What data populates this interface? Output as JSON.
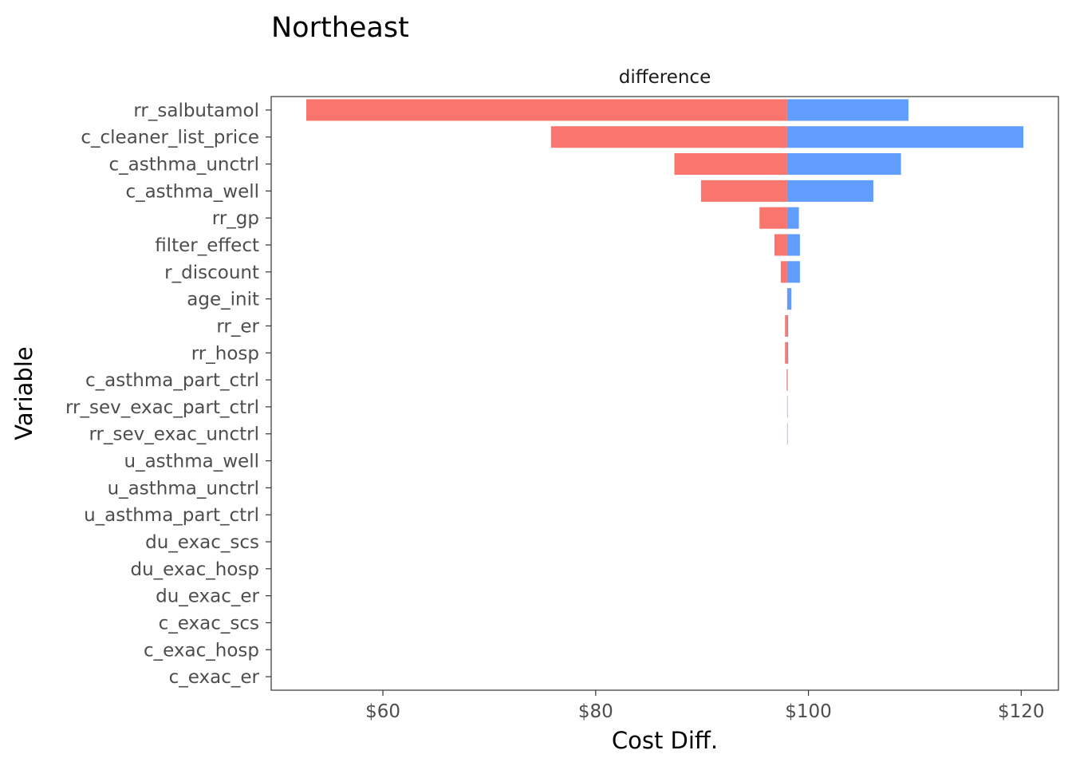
{
  "chart_data": {
    "type": "bar",
    "orientation": "horizontal",
    "title": "Northeast",
    "facet_label": "difference",
    "xlabel": "Cost Diff.",
    "ylabel": "Variable",
    "xlim": [
      49.5,
      123.5
    ],
    "x_ticks": [
      60,
      80,
      100,
      120
    ],
    "x_tick_labels": [
      "$60",
      "$80",
      "$100",
      "$120"
    ],
    "base_value": 98.0,
    "grid": false,
    "legend": "none",
    "categories": [
      "rr_salbutamol",
      "c_cleaner_list_price",
      "c_asthma_unctrl",
      "c_asthma_well",
      "rr_gp",
      "filter_effect",
      "r_discount",
      "age_init",
      "rr_er",
      "rr_hosp",
      "c_asthma_part_ctrl",
      "rr_sev_exac_part_ctrl",
      "rr_sev_exac_unctrl",
      "u_asthma_well",
      "u_asthma_unctrl",
      "u_asthma_part_ctrl",
      "du_exac_scs",
      "du_exac_hosp",
      "du_exac_er",
      "c_exac_scs",
      "c_exac_hosp",
      "c_exac_er"
    ],
    "series": [
      {
        "color": "#F8766D",
        "values": [
          52.8,
          75.8,
          87.4,
          89.9,
          95.4,
          96.8,
          97.4,
          98.0,
          97.8,
          97.8,
          97.95,
          98.0,
          98.0,
          98.0,
          98.0,
          98.0,
          98.0,
          98.0,
          98.0,
          98.0,
          98.0,
          98.0
        ]
      },
      {
        "color": "#619CFF",
        "values": [
          109.4,
          120.2,
          108.7,
          106.1,
          99.1,
          99.2,
          99.2,
          98.4,
          98.1,
          98.1,
          98.05,
          98.02,
          98.02,
          98.0,
          98.0,
          98.0,
          98.0,
          98.0,
          98.0,
          98.0,
          98.0,
          98.0
        ]
      }
    ]
  }
}
